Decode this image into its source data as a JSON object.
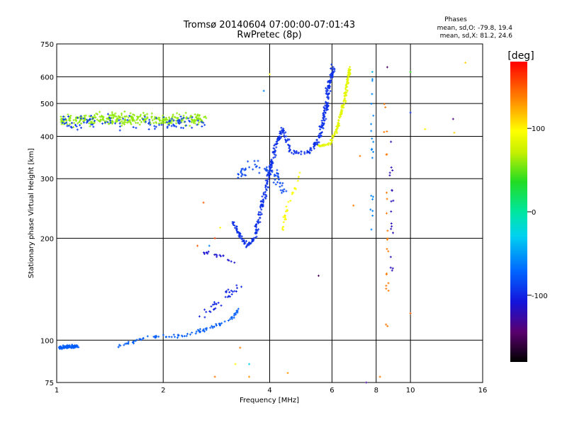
{
  "chart_data": {
    "type": "scatter",
    "title": "Tromsø 20140604 07:00:00-07:01:43",
    "subtitle": "RwPretec (8p)",
    "xlabel": "Frequency [MHz]",
    "ylabel": "Stationary phase Virtual Height [km]",
    "x_scale": "log",
    "y_scale": "log",
    "xlim": [
      1,
      16
    ],
    "ylim": [
      75,
      750
    ],
    "x_ticks": [
      1,
      2,
      4,
      6,
      8,
      10,
      16
    ],
    "y_ticks": [
      75,
      100,
      200,
      300,
      400,
      500,
      600,
      750
    ],
    "x_gridlines": [
      2,
      4,
      6,
      8,
      10
    ],
    "y_gridlines": [
      100,
      200,
      300,
      400,
      500,
      600
    ],
    "stats": {
      "header": "Phases",
      "line_o": "mean, sd,O: -79.8, 19.4",
      "line_x": "mean, sd,X:  81.2, 24.6"
    },
    "colorbar": {
      "label": "[deg]",
      "range": [
        -180,
        180
      ],
      "ticks": [
        {
          "value": 100,
          "label": "100"
        },
        {
          "value": 0,
          "label": "0"
        },
        {
          "value": -100,
          "label": "-100"
        }
      ]
    },
    "traces": [
      {
        "segments": [
          [
            [
              1.02,
              95
            ],
            [
              1.15,
              96
            ]
          ],
          [
            [
              1.5,
              96
            ],
            [
              1.8,
              102
            ],
            [
              2.3,
              103
            ],
            [
              2.8,
              110
            ],
            [
              3.1,
              115
            ],
            [
              3.3,
              125
            ]
          ]
        ],
        "phase": -75,
        "spread": 0.015,
        "count": 190
      },
      {
        "segments": [
          [
            [
              2.6,
              118
            ],
            [
              3.0,
              135
            ],
            [
              3.3,
              145
            ]
          ]
        ],
        "phase": -100,
        "spread": 0.04,
        "count": 35
      },
      {
        "segments": [
          [
            [
              2.5,
              185
            ],
            [
              3.0,
              175
            ],
            [
              3.2,
              168
            ]
          ]
        ],
        "phase": -110,
        "spread": 0.02,
        "count": 18
      },
      {
        "segments": [
          [
            [
              3.15,
              225
            ],
            [
              3.28,
              205
            ],
            [
              3.45,
              190
            ],
            [
              3.62,
              200
            ],
            [
              3.75,
              235
            ],
            [
              3.9,
              280
            ],
            [
              4.05,
              330
            ],
            [
              4.2,
              390
            ],
            [
              4.35,
              420
            ],
            [
              4.45,
              395
            ],
            [
              4.6,
              360
            ],
            [
              4.9,
              355
            ],
            [
              5.2,
              360
            ],
            [
              5.5,
              395
            ],
            [
              5.75,
              470
            ],
            [
              5.9,
              570
            ],
            [
              6.05,
              640
            ]
          ]
        ],
        "phase": -95,
        "spread": 0.022,
        "count": 420
      },
      {
        "segments": [
          [
            [
              3.2,
              305
            ],
            [
              3.6,
              330
            ],
            [
              4.1,
              315
            ],
            [
              4.4,
              275
            ]
          ]
        ],
        "phase": -85,
        "spread": 0.05,
        "count": 60
      },
      {
        "segments": [
          [
            [
              4.35,
              210
            ],
            [
              4.5,
              255
            ],
            [
              4.7,
              280
            ],
            [
              4.9,
              320
            ]
          ]
        ],
        "phase": 95,
        "spread": 0.015,
        "count": 28
      },
      {
        "segments": [
          [
            [
              5.5,
              375
            ],
            [
              5.9,
              380
            ],
            [
              6.2,
              420
            ],
            [
              6.5,
              510
            ],
            [
              6.75,
              640
            ]
          ]
        ],
        "phase": 85,
        "spread": 0.012,
        "count": 170
      },
      {
        "segments": [
          [
            [
              1.02,
              450
            ],
            [
              2.6,
              450
            ]
          ]
        ],
        "phase": 60,
        "spread": 0.06,
        "count": 340
      },
      {
        "segments": [
          [
            [
              1.02,
              440
            ],
            [
              2.6,
              440
            ]
          ]
        ],
        "phase": -90,
        "spread": 0.07,
        "count": 110
      },
      {
        "segments": [
          [
            [
              7.8,
              600
            ],
            [
              7.8,
              200
            ]
          ]
        ],
        "phase": -60,
        "spread": 0.02,
        "count": 20
      },
      {
        "segments": [
          [
            [
              8.5,
              500
            ],
            [
              8.6,
              110
            ]
          ]
        ],
        "phase": 140,
        "spread": 0.02,
        "count": 22
      },
      {
        "segments": [
          [
            [
              8.8,
              400
            ],
            [
              8.9,
              160
            ]
          ]
        ],
        "phase": -120,
        "spread": 0.02,
        "count": 18
      }
    ],
    "extra_points": [
      {
        "x": 4.0,
        "y": 610,
        "phase": 100
      },
      {
        "x": 3.85,
        "y": 545,
        "phase": -60
      },
      {
        "x": 7.8,
        "y": 620,
        "phase": -40
      },
      {
        "x": 8.6,
        "y": 640,
        "phase": -140
      },
      {
        "x": 10.0,
        "y": 620,
        "phase": 40
      },
      {
        "x": 10.0,
        "y": 470,
        "phase": -100
      },
      {
        "x": 11.0,
        "y": 420,
        "phase": 100
      },
      {
        "x": 13.2,
        "y": 450,
        "phase": -140
      },
      {
        "x": 13.3,
        "y": 410,
        "phase": 110
      },
      {
        "x": 14.3,
        "y": 660,
        "phase": 110
      },
      {
        "x": 7.2,
        "y": 350,
        "phase": 140
      },
      {
        "x": 6.9,
        "y": 250,
        "phase": 140
      },
      {
        "x": 5.5,
        "y": 155,
        "phase": -150
      },
      {
        "x": 2.9,
        "y": 215,
        "phase": 100
      },
      {
        "x": 2.8,
        "y": 200,
        "phase": 160
      },
      {
        "x": 2.7,
        "y": 190,
        "phase": -60
      },
      {
        "x": 2.6,
        "y": 255,
        "phase": 150
      },
      {
        "x": 2.5,
        "y": 190,
        "phase": 150
      },
      {
        "x": 3.5,
        "y": 78,
        "phase": 130
      },
      {
        "x": 3.5,
        "y": 85,
        "phase": -30
      },
      {
        "x": 4.5,
        "y": 80,
        "phase": 130
      },
      {
        "x": 7.5,
        "y": 75,
        "phase": -130
      },
      {
        "x": 8.2,
        "y": 78,
        "phase": 140
      },
      {
        "x": 10.0,
        "y": 120,
        "phase": 150
      },
      {
        "x": 2.8,
        "y": 78,
        "phase": 140
      },
      {
        "x": 3.3,
        "y": 95,
        "phase": 140
      },
      {
        "x": 3.2,
        "y": 85,
        "phase": 100
      }
    ]
  }
}
